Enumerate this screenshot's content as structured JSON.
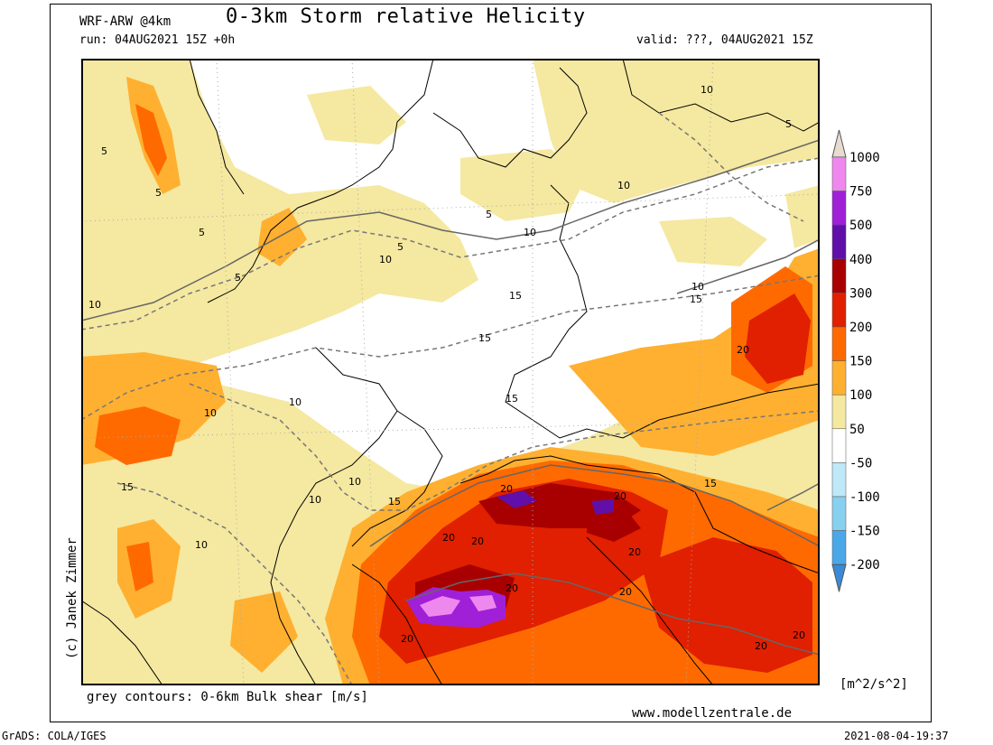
{
  "header": {
    "model": "WRF-ARW @4km",
    "title": "0-3km Storm relative Helicity",
    "run": "run: 04AUG2021 15Z +0h",
    "valid": "valid: ???, 04AUG2021 15Z"
  },
  "legend": {
    "levels": [
      "1000",
      "750",
      "500",
      "400",
      "300",
      "200",
      "150",
      "100",
      "50",
      "-50",
      "-100",
      "-150",
      "-200"
    ],
    "colors": [
      "#e8dcd0",
      "#ee88ee",
      "#a020d8",
      "#6010a8",
      "#a80000",
      "#e02000",
      "#ff6a00",
      "#ffb030",
      "#f5e8a0",
      "#ffffff",
      "#bfe8f8",
      "#88d0f0",
      "#4aa8e8",
      "#3a8ad8"
    ],
    "unit": "[m^2/s^2]"
  },
  "map": {
    "contour_labels": [
      "5",
      "5",
      "5",
      "5",
      "5",
      "5",
      "5",
      "10",
      "10",
      "10",
      "10",
      "10",
      "10",
      "10",
      "10",
      "10",
      "10",
      "10",
      "15",
      "15",
      "15",
      "15",
      "15",
      "15",
      "15",
      "20",
      "20",
      "20",
      "20",
      "20",
      "20",
      "20",
      "20",
      "20",
      "20",
      "20"
    ]
  },
  "footer": {
    "contours_note": "grey contours: 0-6km Bulk shear [m/s]",
    "website": "www.modellzentrale.de",
    "credit": "(c) Janek Zimmer",
    "grads": "GrADS: COLA/IGES",
    "timestamp": "2021-08-04-19:37"
  }
}
